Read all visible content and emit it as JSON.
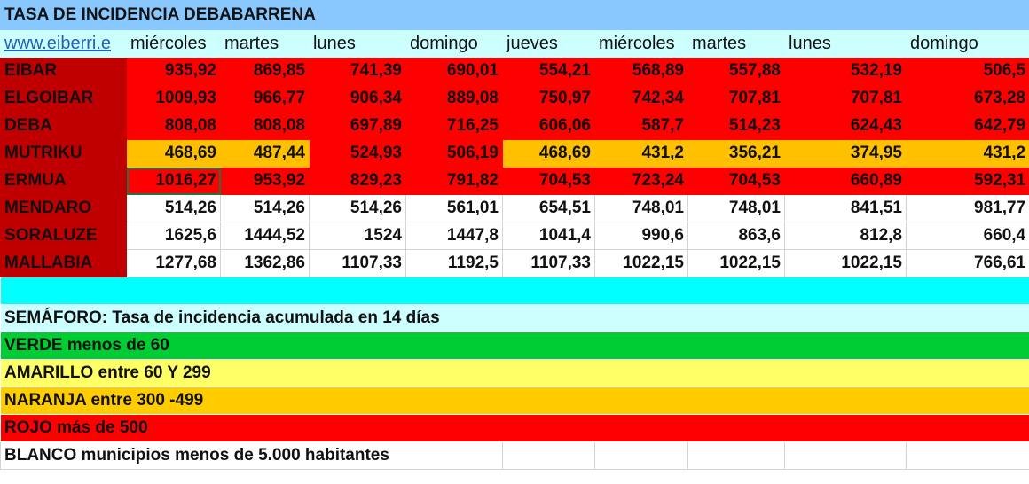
{
  "title": "TASA DE INCIDENCIA DEBABARRENA",
  "link": "www.eiberri.e",
  "days": [
    "miércoles",
    "martes",
    "lunes",
    "domingo",
    "jueves",
    "miércoles",
    "martes",
    "lunes",
    "domingo"
  ],
  "rows": [
    {
      "name": "EIBAR",
      "values": [
        "935,92",
        "869,85",
        "741,39",
        "690,01",
        "554,21",
        "568,89",
        "557,88",
        "532,19",
        "506,5"
      ],
      "colors": [
        "red",
        "red",
        "red",
        "red",
        "red",
        "red",
        "red",
        "red",
        "red"
      ]
    },
    {
      "name": "ELGOIBAR",
      "values": [
        "1009,93",
        "966,77",
        "906,34",
        "889,08",
        "750,97",
        "742,34",
        "707,81",
        "707,81",
        "673,28"
      ],
      "colors": [
        "red",
        "red",
        "red",
        "red",
        "red",
        "red",
        "red",
        "red",
        "red"
      ]
    },
    {
      "name": "DEBA",
      "values": [
        "808,08",
        "808,08",
        "697,89",
        "716,25",
        "606,06",
        "587,7",
        "514,23",
        "624,43",
        "642,79"
      ],
      "colors": [
        "red",
        "red",
        "red",
        "red",
        "red",
        "red",
        "red",
        "red",
        "red"
      ]
    },
    {
      "name": "MUTRIKU",
      "values": [
        "468,69",
        "487,44",
        "524,93",
        "506,19",
        "468,69",
        "431,2",
        "356,21",
        "374,95",
        "431,2"
      ],
      "colors": [
        "orange",
        "orange",
        "red",
        "red",
        "orange",
        "orange",
        "orange",
        "orange",
        "orange"
      ]
    },
    {
      "name": "ERMUA",
      "values": [
        "1016,27",
        "953,92",
        "829,23",
        "791,82",
        "704,53",
        "723,24",
        "704,53",
        "660,89",
        "592,31"
      ],
      "colors": [
        "red",
        "red",
        "red",
        "red",
        "red",
        "red",
        "red",
        "red",
        "red"
      ]
    },
    {
      "name": "MENDARO",
      "values": [
        "514,26",
        "514,26",
        "514,26",
        "561,01",
        "654,51",
        "748,01",
        "748,01",
        "841,51",
        "981,77"
      ],
      "colors": [
        "white",
        "white",
        "white",
        "white",
        "white",
        "white",
        "white",
        "white",
        "white"
      ]
    },
    {
      "name": "SORALUZE",
      "values": [
        "1625,6",
        "1444,52",
        "1524",
        "1447,8",
        "1041,4",
        "990,6",
        "863,6",
        "812,8",
        "660,4"
      ],
      "colors": [
        "white",
        "white",
        "white",
        "white",
        "white",
        "white",
        "white",
        "white",
        "white"
      ]
    },
    {
      "name": "MALLABIA",
      "values": [
        "1277,68",
        "1362,86",
        "1107,33",
        "1192,5",
        "1107,33",
        "1022,15",
        "1022,15",
        "1022,15",
        "766,61"
      ],
      "colors": [
        "white",
        "white",
        "white",
        "white",
        "white",
        "white",
        "white",
        "white",
        "white"
      ]
    }
  ],
  "legend": {
    "header": "SEMÁFORO:  Tasa de incidencia acumulada en 14 días",
    "verde": "VERDE menos de 60",
    "amarillo": "AMARILLO entre 60 Y 299",
    "naranja": "NARANJA entre 300 -499",
    "rojo": "ROJO más de 500",
    "blanco": "BLANCO municipios menos de 5.000 habitantes"
  },
  "colors": {
    "title": "#88c8ff",
    "header": "#ccffff",
    "name": "#c00000",
    "red": "#ff0000",
    "orange": "#ffc000",
    "cyan": "#00ffff",
    "verde": "#00cc33",
    "amarillo": "#ffff66",
    "naranja": "#ffcc00"
  }
}
